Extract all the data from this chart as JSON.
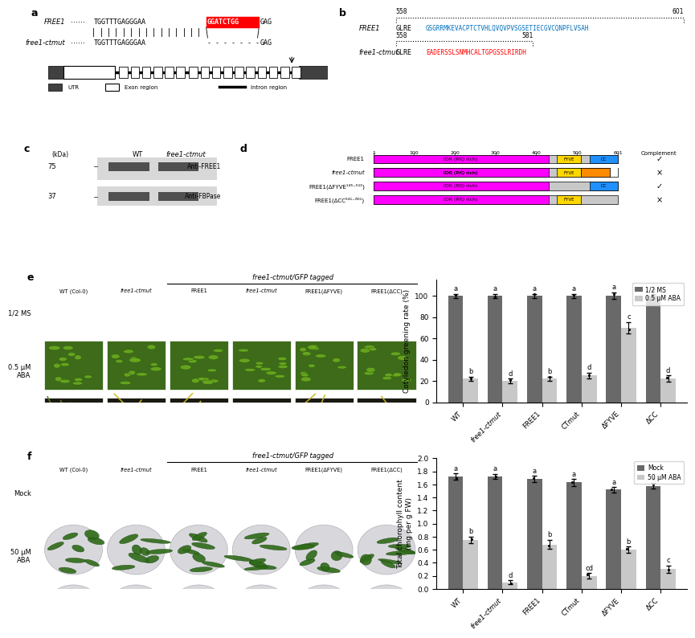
{
  "panel_b": {
    "free1_seq": "GSGRRMKEVACPTCTVHLQVQVPVSGSETIECGVCQNPFLVSAH",
    "ctmut_seq": "EADERSSLSNMHCALTGPGSSLRIRDH",
    "free1_seq_color": "#0070C0",
    "ctmut_seq_color": "#FF0000"
  },
  "panel_e_bar": {
    "categories": [
      "WT",
      "free1-ctmut",
      "FREE1",
      "CTmut",
      "ΔFYVE",
      "ΔCC"
    ],
    "half_ms": [
      100,
      100,
      100,
      100,
      100,
      100
    ],
    "aba": [
      22,
      20,
      22,
      25,
      70,
      22
    ],
    "half_ms_err": [
      2,
      2,
      2,
      2,
      3,
      2
    ],
    "aba_err": [
      2,
      2,
      2,
      3,
      5,
      3
    ],
    "half_ms_color": "#696969",
    "aba_color": "#C8C8C8",
    "half_ms_label": "1/2 MS",
    "aba_label": "0.5 μM ABA",
    "ylabel": "Cotyledon greening rate (%)",
    "ylim": [
      0,
      120
    ],
    "yticks": [
      0,
      20,
      40,
      60,
      80,
      100
    ],
    "letter_half_ms": [
      "a",
      "a",
      "a",
      "a",
      "a",
      "a"
    ],
    "letter_aba": [
      "b",
      "d",
      "b",
      "d",
      "c",
      "d"
    ]
  },
  "panel_f_bar": {
    "categories": [
      "WT",
      "free1-ctmut",
      "FREE1",
      "CTmut",
      "ΔFYVE",
      "ΔCC"
    ],
    "mock": [
      1.72,
      1.72,
      1.68,
      1.63,
      1.52,
      1.58
    ],
    "aba": [
      0.75,
      0.1,
      0.68,
      0.2,
      0.6,
      0.3
    ],
    "mock_err": [
      0.05,
      0.04,
      0.05,
      0.05,
      0.04,
      0.04
    ],
    "aba_err": [
      0.05,
      0.03,
      0.07,
      0.04,
      0.05,
      0.06
    ],
    "mock_color": "#696969",
    "aba_color": "#C8C8C8",
    "mock_label": "Mock",
    "aba_label": "50 μM ABA",
    "ylabel": "Total chlorophyll content\n(mg per g FW)",
    "ylim": [
      0,
      2.0
    ],
    "yticks": [
      0.0,
      0.2,
      0.4,
      0.6,
      0.8,
      1.0,
      1.2,
      1.4,
      1.6,
      1.8,
      2.0
    ],
    "letter_mock": [
      "a",
      "a",
      "a",
      "a",
      "a",
      "a"
    ],
    "letter_aba": [
      "b",
      "d",
      "b",
      "cd",
      "b",
      "c"
    ]
  },
  "photo_e_colors": {
    "row0": [
      "#4A7A28",
      "#4A7A28",
      "#4A7A28",
      "#4A7A28",
      "#4A7A28",
      "#4A7A28"
    ],
    "row1": [
      "#2A3A18",
      "#2A3A18",
      "#2A3A18",
      "#2A3A18",
      "#2A3A18",
      "#2A3A18"
    ]
  },
  "photo_f_colors": {
    "row0": [
      "#3A6020",
      "#3A6020",
      "#3A6020",
      "#3A6020",
      "#3A6020",
      "#3A6020"
    ],
    "row1": [
      "#4A6A20",
      "#D4D840",
      "#4A6A20",
      "#D4D840",
      "#4A6A20",
      "#C8C840"
    ]
  }
}
